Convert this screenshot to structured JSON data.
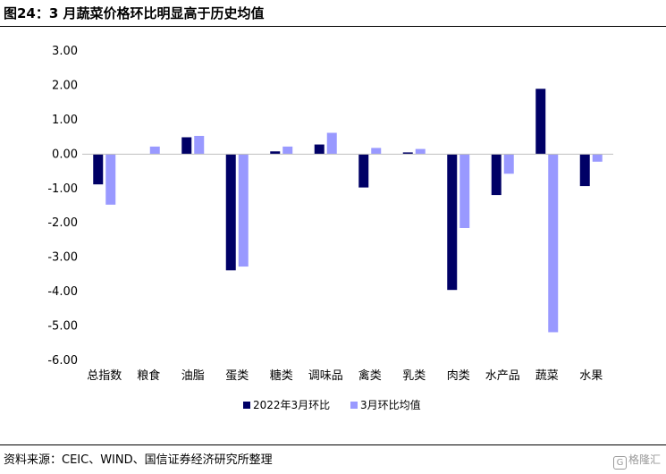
{
  "header": {
    "title": "图24：3 月蔬菜价格环比明显高于历史均值"
  },
  "footer": {
    "source": "资料来源：CEIC、WIND、国信证券经济研究所整理",
    "watermark_text": "格隆汇",
    "watermark_icon": "G"
  },
  "chart_data": {
    "type": "bar",
    "categories": [
      "总指数",
      "粮食",
      "油脂",
      "蛋类",
      "糖类",
      "调味品",
      "禽类",
      "乳类",
      "肉类",
      "水产品",
      "蔬菜",
      "水果"
    ],
    "series": [
      {
        "name": "2022年3月环比",
        "color": "#000066",
        "values": [
          -0.88,
          0.0,
          0.49,
          -3.38,
          0.08,
          0.28,
          -0.97,
          0.05,
          -3.95,
          -1.19,
          1.9,
          -0.93
        ]
      },
      {
        "name": "3月环比均值",
        "color": "#9999ff",
        "values": [
          -1.47,
          0.22,
          0.53,
          -3.27,
          0.22,
          0.62,
          0.18,
          0.15,
          -2.15,
          -0.57,
          -5.18,
          -0.22
        ]
      }
    ],
    "ylim": [
      -6,
      3
    ],
    "yticks": [
      "3.00",
      "2.00",
      "1.00",
      "0.00",
      "-1.00",
      "-2.00",
      "-3.00",
      "-4.00",
      "-5.00",
      "-6.00"
    ],
    "legend": "bottom",
    "grid": false
  }
}
